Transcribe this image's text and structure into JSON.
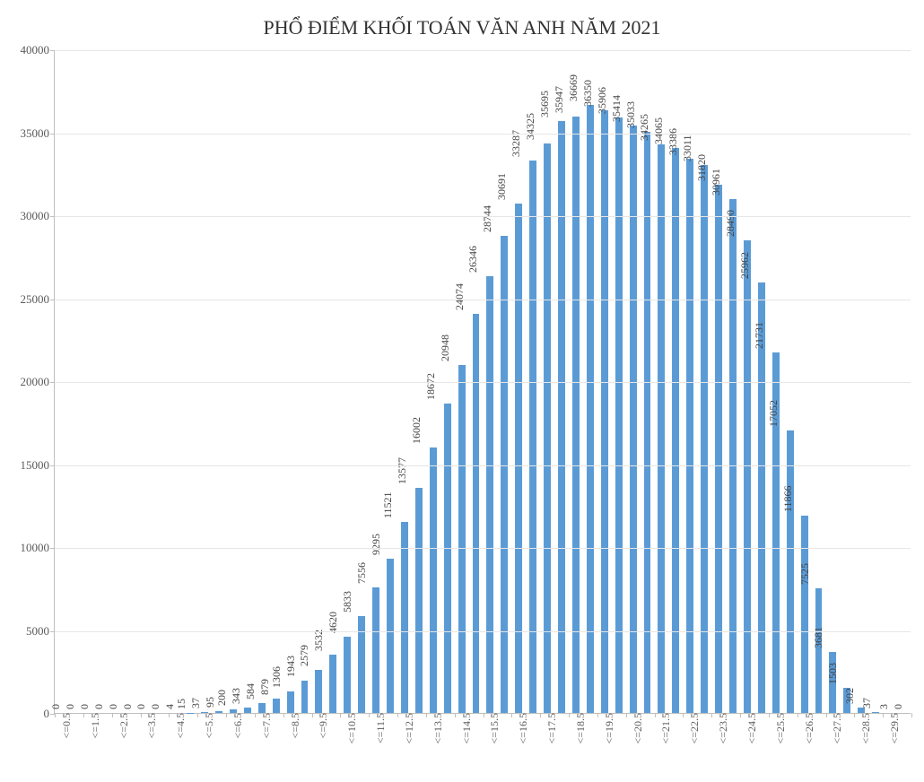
{
  "chart": {
    "type": "bar",
    "title": "PHỔ ĐIỂM KHỐI TOÁN VĂN ANH  NĂM 2021",
    "title_fontsize": 22,
    "title_color": "#333333",
    "background_color": "#ffffff",
    "axis_color": "#bfbfbf",
    "grid_color": "#e6e6e6",
    "bar_color": "#5b9bd5",
    "bar_width_ratio": 0.5,
    "label_fontsize": 12,
    "tick_fontsize": 13,
    "tick_color": "#595959",
    "label_color": "#404040",
    "ylim": [
      0,
      40000
    ],
    "ytick_step": 5000,
    "categories": [
      "<=0.5",
      "",
      "<=1.5",
      "",
      "<=2.5",
      "",
      "<=3.5",
      "",
      "<=4.5",
      "",
      "<=5.5",
      "",
      "<=6.5",
      "",
      "<=7.5",
      "",
      "<=8.5",
      "",
      "<=9.5",
      "",
      "<=10.5",
      "",
      "<=11.5",
      "",
      "<=12.5",
      "",
      "<=13.5",
      "",
      "<=14.5",
      "",
      "<=15.5",
      "",
      "<=16.5",
      "",
      "<=17.5",
      "",
      "<=18.5",
      "",
      "<=19.5",
      "",
      "<=20.5",
      "",
      "<=21.5",
      "",
      "<=22.5",
      "",
      "<=23.5",
      "",
      "<=24.5",
      "",
      "<=25.5",
      "",
      "<=26.5",
      "",
      "<=27.5",
      "",
      "<=28.5",
      "",
      "<=29.5",
      ""
    ],
    "values": [
      0,
      0,
      0,
      0,
      0,
      0,
      0,
      0,
      4,
      15,
      37,
      95,
      200,
      343,
      584,
      879,
      1306,
      1943,
      2579,
      3532,
      4620,
      5833,
      7556,
      9295,
      11521,
      13577,
      16002,
      18672,
      20948,
      24074,
      26346,
      28744,
      30691,
      33287,
      34325,
      35695,
      35947,
      36669,
      36350,
      35906,
      35414,
      35033,
      34265,
      34065,
      33386,
      33011,
      31820,
      30961,
      28490,
      25962,
      21731,
      17052,
      11866,
      7525,
      3681,
      1503,
      302,
      37,
      3,
      0
    ]
  }
}
